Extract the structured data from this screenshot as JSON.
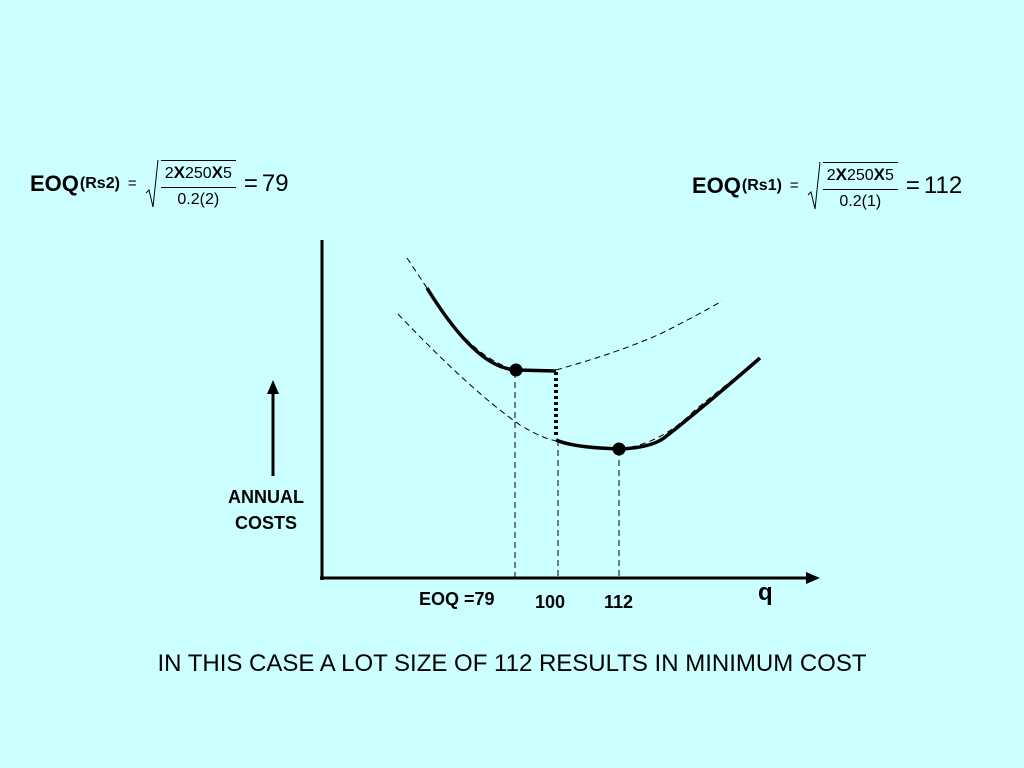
{
  "formula_left": {
    "label": "EOQ",
    "subscript": "(Rs2)",
    "equals": "=",
    "numerator_2": "2",
    "numerator_x1": "X",
    "numerator_250": "250",
    "numerator_x2": "X",
    "numerator_5": "5",
    "denominator": "0.2(2)",
    "result": "79"
  },
  "formula_right": {
    "label": "EOQ",
    "subscript": "(Rs1)",
    "equals": "=",
    "numerator_2": "2",
    "numerator_x1": "X",
    "numerator_250": "250",
    "numerator_x2": "X",
    "numerator_5": "5",
    "denominator": "0.2(1)",
    "result": "112"
  },
  "diagram": {
    "y_axis_label_line1": "ANNUAL",
    "y_axis_label_line2": "COSTS",
    "x_axis_label": "q",
    "tick_eoq": "EOQ =79",
    "tick_100": "100",
    "tick_112": "112"
  },
  "caption": "IN THIS CASE A LOT SIZE OF 112 RESULTS IN MINIMUM COST"
}
